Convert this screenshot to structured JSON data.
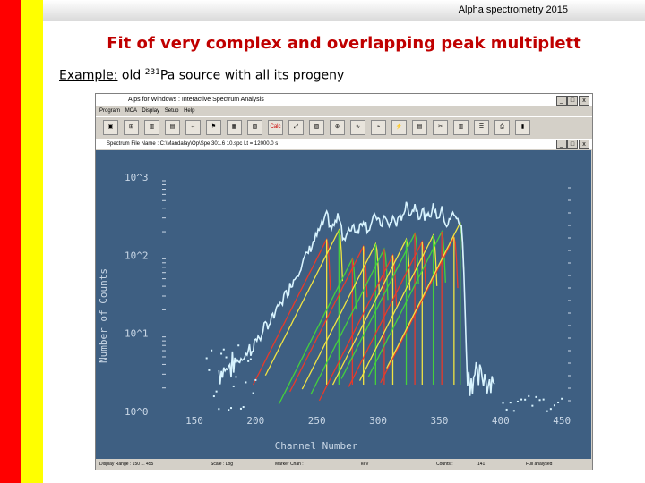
{
  "slide": {
    "course": "Alpha spectrometry 2015",
    "title": "Fit of very complex and overlapping peak multiplett",
    "example_label": "Example:",
    "example_text_pre": "old",
    "isotope_mass": "231",
    "example_text_post": "Pa source with all its progeny"
  },
  "app": {
    "window_title": "Alps   for Windows :   Interactive Spectrum Analysis",
    "menu": [
      "Program",
      "MCA",
      "Display",
      "Setup",
      "Help"
    ],
    "toolbar_icons": [
      "spectrum-icon",
      "peak-icon",
      "region-icon",
      "marker-icon",
      "arrows-icon",
      "flag-icon",
      "peaks-icon",
      "fit-icon",
      "calc-icon",
      "scale-icon",
      "cal-icon",
      "zoom-icon",
      "curve-icon",
      "graph-icon",
      "energy-icon",
      "table-icon",
      "tools-icon",
      "chart-icon",
      "list-icon",
      "print-icon",
      "bars-icon"
    ],
    "toolbar_labels": {
      "calc": "Calc"
    },
    "spectrum_title": "Spectrum File Name :  C:\\Mandalay\\Op\\Spe 301.6 10.spc          Lt = 12000.0 s",
    "y_axis_label": "Number of Counts",
    "x_axis_label": "Channel Number",
    "y_ticks": [
      "10^3",
      "10^2",
      "10^1",
      "10^0"
    ],
    "x_ticks": [
      "150",
      "200",
      "250",
      "300",
      "350",
      "400",
      "450"
    ],
    "status": {
      "display_range": "Display Range :  150  ...  455",
      "scale": "Scale : Log",
      "marker": "Marker Chan :",
      "energy": "keV",
      "counts": "Counts :",
      "count_value": "141",
      "mode": "Full analysed"
    },
    "colors": {
      "plot_bg": "#3e5f82",
      "data": "#d8f4ff",
      "fit_red": "#e83a2a",
      "fit_green": "#44d03c",
      "fit_yellow": "#f0e442"
    }
  },
  "chart_data": {
    "type": "scatter",
    "xlabel": "Channel Number",
    "ylabel": "Number of Counts",
    "log_y": true,
    "xlim": [
      150,
      455
    ],
    "ylim": [
      1,
      1000
    ],
    "series_note": "measured spectrum",
    "multiplet_peaks_channels": [
      258,
      268,
      279,
      288,
      298,
      305,
      312,
      323,
      330,
      336,
      345,
      352,
      362,
      367
    ],
    "peak_heights_counts": [
      160,
      210,
      90,
      130,
      140,
      120,
      100,
      160,
      190,
      150,
      180,
      200,
      170,
      260
    ],
    "group_maxima_channels": [
      262,
      279,
      312,
      348,
      365,
      385
    ]
  }
}
